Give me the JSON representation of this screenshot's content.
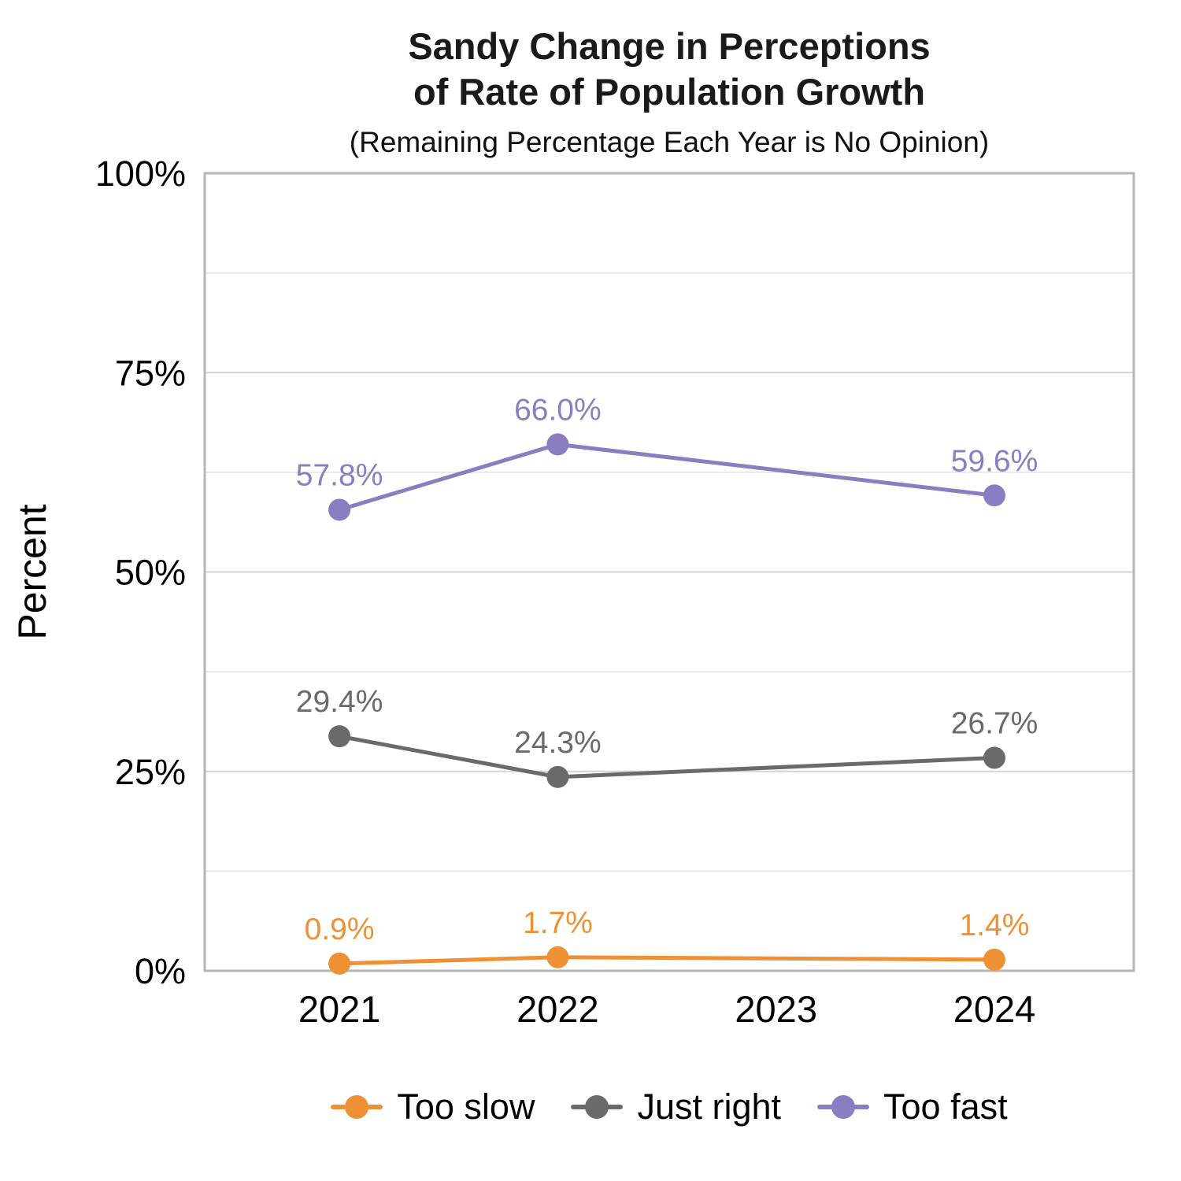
{
  "header": {
    "title_line1": "Sandy Change in Perceptions",
    "title_line2": "of Rate of Population Growth",
    "subtitle": "(Remaining Percentage Each Year is No Opinion)"
  },
  "chart_data": {
    "type": "line",
    "title": "Sandy Change in Perceptions of Rate of Population Growth",
    "subtitle": "(Remaining Percentage Each Year is No Opinion)",
    "xlabel": "",
    "ylabel": "Percent",
    "x_categories": [
      "2021",
      "2022",
      "2023",
      "2024"
    ],
    "ylim": [
      0,
      100
    ],
    "y_major_ticks": [
      0,
      25,
      50,
      75,
      100
    ],
    "y_tick_labels": [
      "0%",
      "25%",
      "50%",
      "75%",
      "100%"
    ],
    "y_minor_ticks": [
      12.5,
      37.5,
      62.5,
      87.5
    ],
    "grid": "horizontal-only, major and minor, panel border on",
    "legend_position": "bottom",
    "note": "No data points at 2023; lines connect 2022 directly to 2024",
    "series": [
      {
        "name": "Too slow",
        "color": "#ED9134",
        "points": [
          {
            "x": "2021",
            "y": 0.9,
            "label": "0.9%"
          },
          {
            "x": "2022",
            "y": 1.7,
            "label": "1.7%"
          },
          {
            "x": "2024",
            "y": 1.4,
            "label": "1.4%"
          }
        ]
      },
      {
        "name": "Just right",
        "color": "#6A6A6A",
        "points": [
          {
            "x": "2021",
            "y": 29.4,
            "label": "29.4%"
          },
          {
            "x": "2022",
            "y": 24.3,
            "label": "24.3%"
          },
          {
            "x": "2024",
            "y": 26.7,
            "label": "26.7%"
          }
        ]
      },
      {
        "name": "Too fast",
        "color": "#8C7CC1",
        "points": [
          {
            "x": "2021",
            "y": 57.8,
            "label": "57.8%"
          },
          {
            "x": "2022",
            "y": 66.0,
            "label": "66.0%"
          },
          {
            "x": "2024",
            "y": 59.6,
            "label": "59.6%"
          }
        ]
      }
    ],
    "style": {
      "panel_border_color": "#B5B5B5",
      "major_grid_color": "#D4D4D4",
      "minor_grid_color": "#E8E8E8",
      "axis_text_color": "#000000"
    }
  }
}
